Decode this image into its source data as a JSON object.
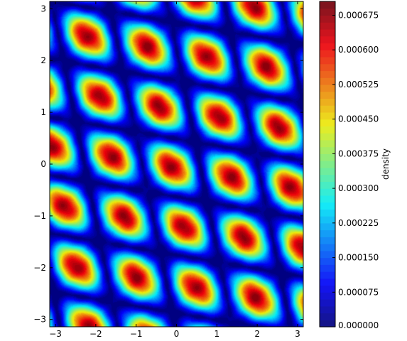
{
  "chart_data": {
    "type": "heatmap",
    "title": "",
    "xlabel": "",
    "ylabel": "",
    "xlim": [
      -3.1416,
      3.1416
    ],
    "ylim": [
      -3.1416,
      3.1416
    ],
    "x_ticks": [
      -3,
      -2,
      -1,
      0,
      1,
      2,
      3
    ],
    "x_tick_labels": [
      "−3",
      "−2",
      "−1",
      "0",
      "1",
      "2",
      "3"
    ],
    "y_ticks": [
      -3,
      -2,
      -1,
      0,
      1,
      2,
      3
    ],
    "y_tick_labels": [
      "−3",
      "−2",
      "−1",
      "0",
      "1",
      "2",
      "3"
    ],
    "grid": false,
    "colormap": "jet",
    "pattern": {
      "description": "periodic lattice of elongated tilted density peaks",
      "peak_density": 0.00068,
      "min_density": 0.0
    },
    "colorbar": {
      "label": "density",
      "range": [
        0.0,
        0.000705
      ],
      "ticks": [
        0.0,
        7.5e-05,
        0.00015,
        0.000225,
        0.0003,
        0.000375,
        0.00045,
        0.000525,
        0.0006,
        0.000675
      ],
      "tick_labels": [
        "0.000000",
        "0.000075",
        "0.000150",
        "0.000225",
        "0.000300",
        "0.000375",
        "0.000450",
        "0.000525",
        "0.000600",
        "0.000675"
      ]
    }
  }
}
